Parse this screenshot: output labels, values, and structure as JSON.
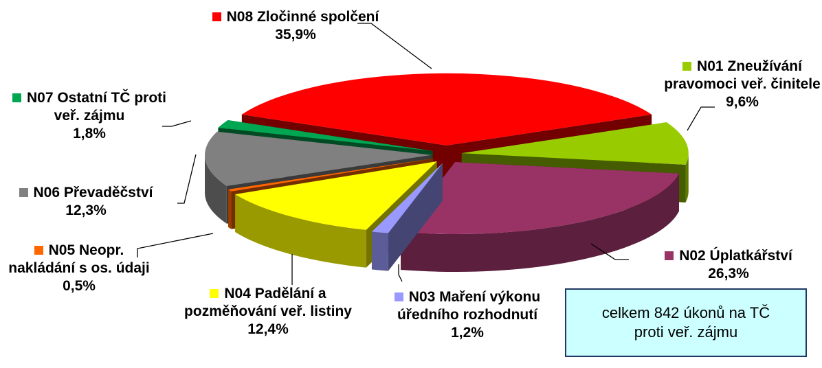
{
  "chart_data": {
    "type": "pie",
    "categories": [
      "N08 Zločinné spolčení",
      "N01 Zneužívání pravomoci veř. činitele",
      "N02 Úplatkářství",
      "N03 Maření výkonu úředního rozhodnutí",
      "N04 Padělání a pozměňování veř. listiny",
      "N05  Neopr. nakládání s os. údaji",
      "N06 Převaděčství",
      "N07 Ostatní TČ proti veř. zájmu"
    ],
    "values": [
      35.9,
      9.6,
      26.3,
      1.2,
      12.4,
      0.5,
      12.3,
      1.8
    ],
    "value_labels": [
      "35,9%",
      "9,6%",
      "26,3%",
      "1,2%",
      "12,4%",
      "0,5%",
      "12,3%",
      "1,8%"
    ],
    "colors": [
      "#ff0000",
      "#99cc00",
      "#993366",
      "#9999ff",
      "#ffff00",
      "#ff6600",
      "#808080",
      "#00a651"
    ],
    "annotation": "celkem 842 úkonů na TČ proti veř. zájmu"
  }
}
